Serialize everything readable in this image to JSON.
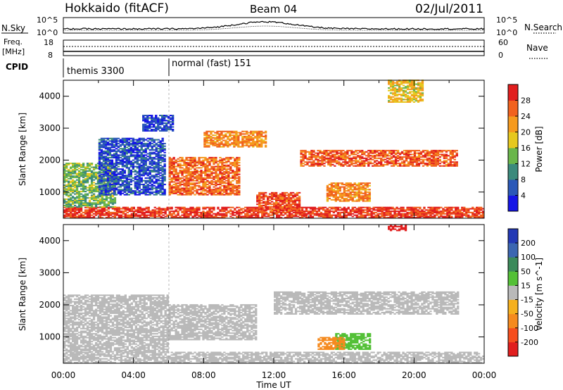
{
  "header": {
    "station": "Hokkaido (fitACF)",
    "beam": "Beam 04",
    "date": "02/Jul/2011"
  },
  "sky_panel": {
    "left_label": "N.Sky",
    "left_ticks": [
      "10^5",
      "10^0"
    ],
    "right_ticks": [
      "10^5",
      "10^0"
    ],
    "right_label": "N.Search"
  },
  "freq_panel": {
    "left_label_1": "Freq.",
    "left_label_2": "[MHz]",
    "left_ticks": [
      "18",
      "8"
    ],
    "right_ticks": [
      "60",
      "0"
    ],
    "right_label": "Nave"
  },
  "cpid_panel": {
    "label": "CPID",
    "modes": [
      {
        "name": "themis 3300",
        "start_hour": 0
      },
      {
        "name": "normal (fast) 151",
        "start_hour": 6
      }
    ]
  },
  "chart_data": [
    {
      "type": "heatmap",
      "title": "",
      "xlabel": "",
      "ylabel": "Slant Range [km]",
      "xlim": [
        0,
        24
      ],
      "ylim": [
        180,
        4500
      ],
      "y_ticks": [
        "1000",
        "2000",
        "3000",
        "4000"
      ],
      "colorbar": {
        "label": "Power [dB]",
        "ticks": [
          "4",
          "8",
          "12",
          "16",
          "20",
          "24",
          "28"
        ],
        "range": [
          0,
          30
        ],
        "colors": [
          "#1515e6",
          "#2a58b8",
          "#3b8a7c",
          "#6ab64a",
          "#e6c81e",
          "#f59a1e",
          "#f1621e",
          "#e11e1e"
        ]
      },
      "echo_regions": [
        {
          "t0": 0.0,
          "t1": 24.0,
          "r0": 180,
          "r1": 520,
          "value": 27
        },
        {
          "t0": 0.0,
          "t1": 3.0,
          "r0": 520,
          "r1": 1900,
          "value": 13
        },
        {
          "t0": 2.0,
          "t1": 5.8,
          "r0": 900,
          "r1": 2700,
          "value": 5
        },
        {
          "t0": 4.5,
          "t1": 6.2,
          "r0": 2900,
          "r1": 3400,
          "value": 4
        },
        {
          "t0": 6.0,
          "t1": 10.0,
          "r0": 900,
          "r1": 2100,
          "value": 24
        },
        {
          "t0": 8.0,
          "t1": 11.5,
          "r0": 2400,
          "r1": 2900,
          "value": 22
        },
        {
          "t0": 11.0,
          "t1": 13.5,
          "r0": 400,
          "r1": 1000,
          "value": 26
        },
        {
          "t0": 13.5,
          "t1": 22.5,
          "r0": 1800,
          "r1": 2300,
          "value": 25
        },
        {
          "t0": 15.0,
          "t1": 17.5,
          "r0": 700,
          "r1": 1300,
          "value": 22
        },
        {
          "t0": 18.5,
          "t1": 20.5,
          "r0": 3800,
          "r1": 4500,
          "value": 18
        }
      ]
    },
    {
      "type": "heatmap",
      "title": "",
      "xlabel": "Time UT",
      "ylabel": "Slant Range [km]",
      "xlim": [
        0,
        24
      ],
      "ylim": [
        180,
        4500
      ],
      "x_ticks": [
        "00:00",
        "04:00",
        "08:00",
        "12:00",
        "16:00",
        "20:00",
        "00:00"
      ],
      "y_ticks": [
        "1000",
        "2000",
        "3000",
        "4000"
      ],
      "colorbar": {
        "label": "Velocity [m s^-1]",
        "ticks": [
          "200",
          "100",
          "50",
          "15",
          "-15",
          "-50",
          "-100",
          "-200"
        ],
        "colors": [
          "#2339b5",
          "#3b66b1",
          "#3b8a5a",
          "#53c036",
          "#b9b9b9",
          "#f5b01e",
          "#f58a1e",
          "#f54e1e",
          "#e11e1e"
        ]
      },
      "echo_regions": [
        {
          "t0": 0.0,
          "t1": 24.0,
          "r0": 180,
          "r1": 520,
          "value": 0
        },
        {
          "t0": 0.0,
          "t1": 6.0,
          "r0": 520,
          "r1": 2300,
          "value": 0
        },
        {
          "t0": 6.0,
          "t1": 11.0,
          "r0": 900,
          "r1": 2000,
          "value": 0
        },
        {
          "t0": 12.0,
          "t1": 22.5,
          "r0": 1700,
          "r1": 2400,
          "value": 0
        },
        {
          "t0": 15.5,
          "t1": 17.5,
          "r0": 600,
          "r1": 1100,
          "value": 40
        },
        {
          "t0": 14.5,
          "t1": 16.0,
          "r0": 600,
          "r1": 1000,
          "value": -60
        },
        {
          "t0": 18.5,
          "t1": 19.5,
          "r0": 4300,
          "r1": 4500,
          "value": -220
        }
      ]
    }
  ]
}
